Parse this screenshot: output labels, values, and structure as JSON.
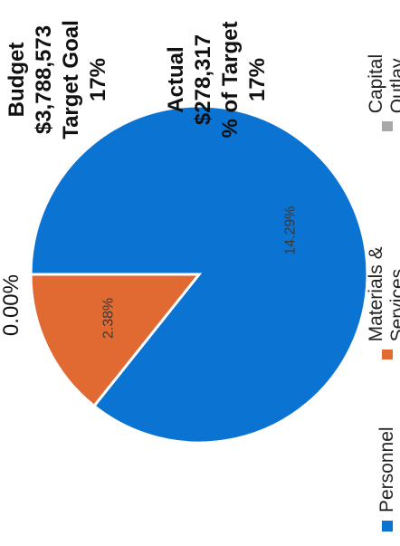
{
  "chart_data": {
    "type": "pie",
    "title": "",
    "slices": [
      {
        "name": "Personnel",
        "value": 14.29,
        "label": "14.29%",
        "color": "#0b73d1"
      },
      {
        "name": "Materials & Services",
        "value": 2.38,
        "label": "2.38%",
        "color": "#e06a32"
      },
      {
        "name": "Capital Outlay",
        "value": 0.0,
        "label": "0.00%",
        "color": "#a8a8a8"
      }
    ],
    "legend": {
      "placement": "bottom",
      "entries": [
        "Personnel",
        "Materials & Services",
        "Capital Outlay"
      ]
    }
  },
  "stats": {
    "budget_label": "Budget",
    "budget_value": "$3,788,573",
    "target_goal_label": "Target Goal",
    "target_goal_value": "17%",
    "actual_label": "Actual",
    "actual_value": "$278,317",
    "pct_target_label": "% of Target",
    "pct_target_value": "17%"
  }
}
